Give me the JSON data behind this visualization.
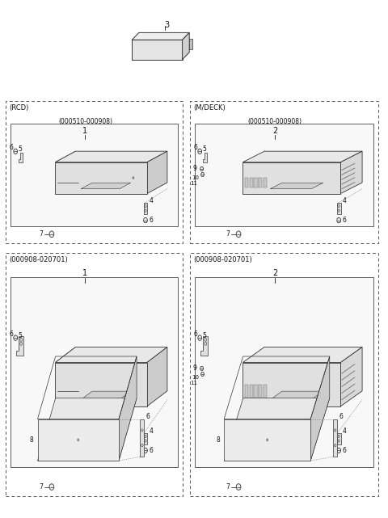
{
  "bg": "#ffffff",
  "fw": 4.8,
  "fh": 6.41,
  "sections": [
    {
      "label": "(RCD)",
      "date": "(000510-000908)",
      "num": "1",
      "ox": 0.02,
      "oy": 0.535,
      "ow": 0.46,
      "oh": 0.275,
      "type": "rcd",
      "has_8": false,
      "has_911": false
    },
    {
      "label": "(M/DECK)",
      "date": "(000510-000908)",
      "num": "2",
      "ox": 0.5,
      "oy": 0.535,
      "ow": 0.48,
      "oh": 0.275,
      "type": "mdeck",
      "has_8": false,
      "has_911": true
    },
    {
      "label": "(000908-020701)",
      "date": "",
      "num": "1",
      "ox": 0.02,
      "oy": 0.04,
      "ow": 0.46,
      "oh": 0.46,
      "type": "rcd",
      "has_8": true,
      "has_911": false
    },
    {
      "label": "(000908-020701)",
      "date": "",
      "num": "2",
      "ox": 0.5,
      "oy": 0.04,
      "ow": 0.48,
      "oh": 0.46,
      "type": "mdeck",
      "has_8": true,
      "has_911": true
    }
  ]
}
